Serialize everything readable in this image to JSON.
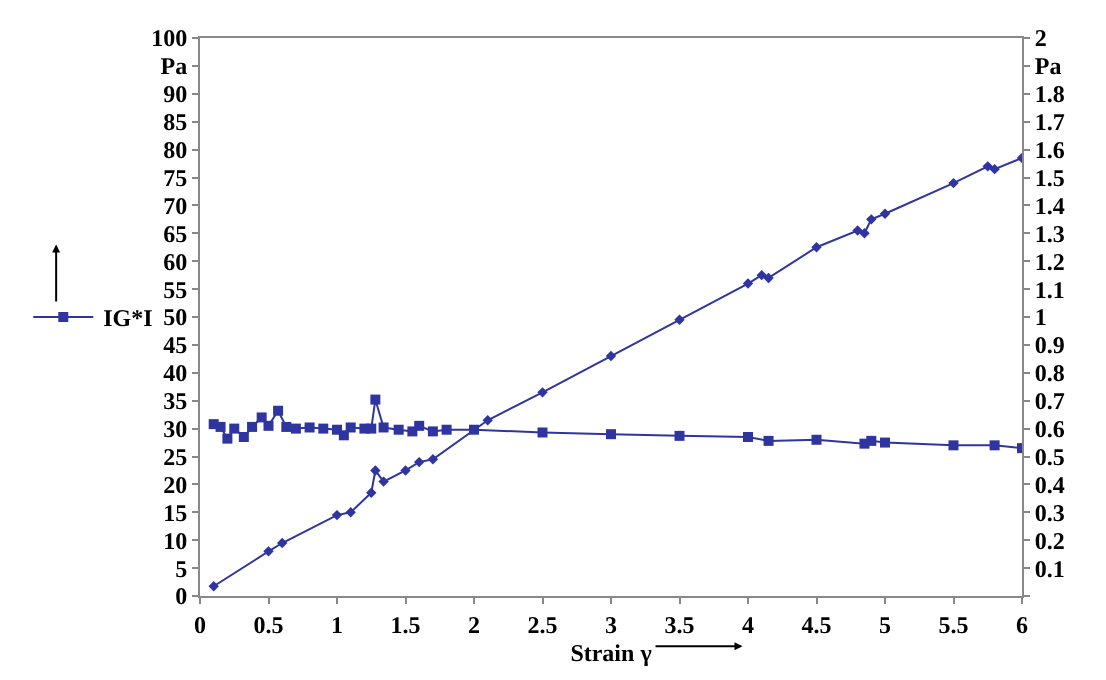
{
  "chart_data": {
    "type": "line",
    "xlabel": "Strain γ",
    "legend": "left",
    "xlim": [
      0,
      6
    ],
    "xticks": [
      0,
      0.5,
      1,
      1.5,
      2,
      2.5,
      3,
      3.5,
      4,
      4.5,
      5,
      5.5,
      6
    ],
    "ylim": [
      0,
      100
    ],
    "yticks": [
      0,
      5,
      10,
      15,
      20,
      25,
      30,
      35,
      40,
      45,
      50,
      55,
      60,
      65,
      70,
      75,
      80,
      85,
      90,
      {
        "value": 95,
        "label": "Pa"
      },
      100
    ],
    "y2lim": [
      0,
      2
    ],
    "y2ticks": [
      {
        "value": 0,
        "label": null
      },
      0.1,
      0.2,
      0.3,
      0.4,
      0.5,
      0.6,
      0.7,
      0.8,
      0.9,
      1,
      1.1,
      1.2,
      1.3,
      1.4,
      1.5,
      1.6,
      1.7,
      1.8,
      {
        "value": 1.9,
        "label": "Pa"
      },
      2
    ],
    "series": [
      {
        "name": "IG*I",
        "color": "#2e35a0",
        "marker": "square",
        "x": [
          0.1,
          0.15,
          0.2,
          0.25,
          0.32,
          0.38,
          0.45,
          0.5,
          0.57,
          0.63,
          0.7,
          0.8,
          0.9,
          1.0,
          1.05,
          1.1,
          1.2,
          1.25,
          1.28,
          1.34,
          1.45,
          1.55,
          1.6,
          1.7,
          1.8,
          2.0,
          2.5,
          3.0,
          3.5,
          4.0,
          4.15,
          4.5,
          4.85,
          4.9,
          5.0,
          5.5,
          5.8,
          6.0
        ],
        "values": [
          30.8,
          30.3,
          28.2,
          30,
          28.5,
          30.3,
          32,
          30.5,
          33.2,
          30.3,
          30,
          30.2,
          30,
          29.8,
          28.8,
          30.2,
          30,
          30,
          35.2,
          30.2,
          29.8,
          29.5,
          30.5,
          29.5,
          29.8,
          29.8,
          29.3,
          29,
          28.7,
          28.5,
          27.8,
          28,
          27.3,
          27.8,
          27.5,
          27,
          27,
          26.5
        ]
      },
      {
        "color": "#2e35a0",
        "marker": "diamond",
        "axis": "y2",
        "x": [
          0.1,
          0.5,
          0.6,
          1.0,
          1.1,
          1.25,
          1.28,
          1.34,
          1.5,
          1.6,
          1.7,
          2.1,
          2.5,
          3.0,
          3.5,
          4.0,
          4.1,
          4.15,
          4.5,
          4.8,
          4.85,
          4.9,
          5.0,
          5.5,
          5.75,
          5.8,
          6.0
        ],
        "values": [
          0.035,
          0.16,
          0.19,
          0.29,
          0.3,
          0.37,
          0.45,
          0.41,
          0.45,
          0.48,
          0.49,
          0.63,
          0.73,
          0.86,
          0.99,
          1.12,
          1.15,
          1.14,
          1.25,
          1.31,
          1.3,
          1.35,
          1.37,
          1.48,
          1.54,
          1.53,
          1.57
        ]
      }
    ]
  }
}
